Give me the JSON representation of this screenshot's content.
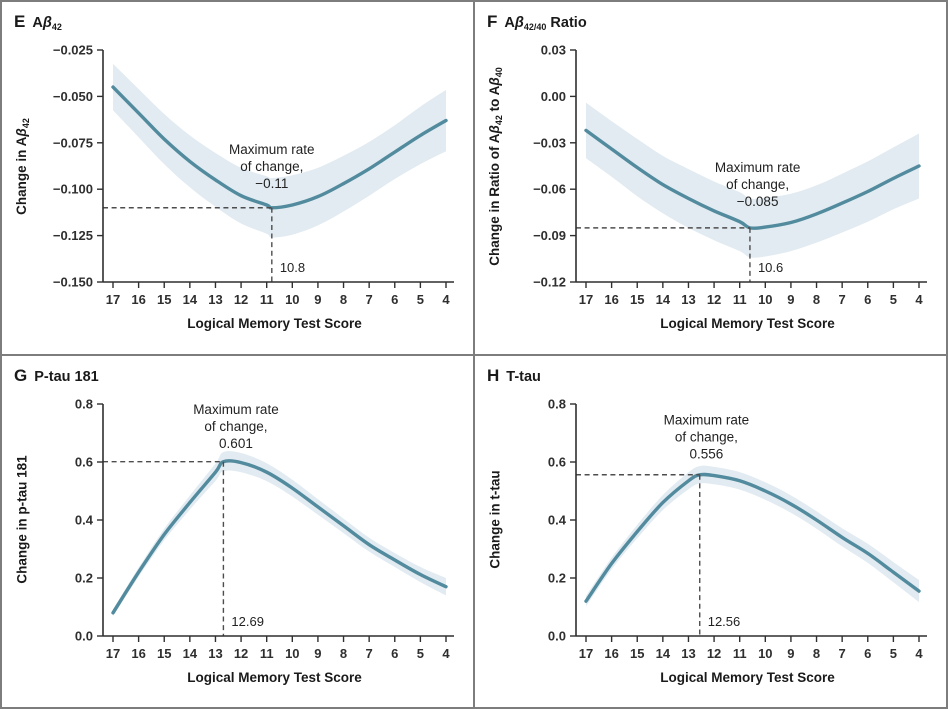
{
  "colors": {
    "line": "#528a9e",
    "band": "#e1ebf1",
    "axis": "#2f2f2f",
    "dashed": "#4d4d4d",
    "border": "#7d7d7d"
  },
  "chart_data": [
    {
      "type": "line",
      "panel": "E",
      "title_plain": "Abeta42",
      "title_parts": [
        {
          "t": "A"
        },
        {
          "t": "β",
          "italic": true
        },
        {
          "t": "42",
          "sub": true
        }
      ],
      "ylabel_parts": [
        {
          "t": "Change in A"
        },
        {
          "t": "β",
          "italic": true
        },
        {
          "t": "42",
          "sub": true
        }
      ],
      "xlabel": "Logical Memory Test Score",
      "x_range": [
        17,
        4
      ],
      "x_ticks": [
        17,
        16,
        15,
        14,
        13,
        12,
        11,
        10,
        9,
        8,
        7,
        6,
        5,
        4
      ],
      "ylim": [
        -0.15,
        -0.025
      ],
      "y_ticks": [
        {
          "v": -0.025,
          "label": "−0.025"
        },
        {
          "v": -0.05,
          "label": "−0.050"
        },
        {
          "v": -0.075,
          "label": "−0.075"
        },
        {
          "v": -0.1,
          "label": "−0.100"
        },
        {
          "v": -0.125,
          "label": "−0.125"
        },
        {
          "v": -0.15,
          "label": "−0.150"
        }
      ],
      "series": [
        {
          "name": "fitted change with 95% CI band",
          "x": [
            17,
            16,
            15,
            14,
            13,
            12,
            11,
            10.8,
            10,
            9,
            8,
            7,
            6,
            5,
            4
          ],
          "y": [
            -0.045,
            -0.059,
            -0.073,
            -0.085,
            -0.095,
            -0.1035,
            -0.1085,
            -0.11,
            -0.1085,
            -0.104,
            -0.097,
            -0.089,
            -0.08,
            -0.071,
            -0.063
          ],
          "band_half_width": [
            0.0125,
            0.013,
            0.0135,
            0.014,
            0.0145,
            0.015,
            0.0155,
            0.016,
            0.016,
            0.0155,
            0.015,
            0.0145,
            0.0145,
            0.0155,
            0.0165
          ]
        }
      ],
      "annotation": {
        "lines": [
          "Maximum rate",
          "of change,",
          "−0.11"
        ],
        "text_x": 10.8,
        "text_y": -0.081,
        "peak_x": 10.8,
        "peak_y": -0.11,
        "peak_label": "10.8"
      }
    },
    {
      "type": "line",
      "panel": "F",
      "title_plain": "Abeta42/40 Ratio",
      "title_parts": [
        {
          "t": "A"
        },
        {
          "t": "β",
          "italic": true
        },
        {
          "t": "42/40",
          "sub": true
        },
        {
          "t": " Ratio"
        }
      ],
      "ylabel_parts": [
        {
          "t": "Change in Ratio of A"
        },
        {
          "t": "β",
          "italic": true
        },
        {
          "t": "42",
          "sub": true
        },
        {
          "t": " to A"
        },
        {
          "t": "β",
          "italic": true
        },
        {
          "t": "40",
          "sub": true
        }
      ],
      "xlabel": "Logical Memory Test Score",
      "x_range": [
        17,
        4
      ],
      "x_ticks": [
        17,
        16,
        15,
        14,
        13,
        12,
        11,
        10,
        9,
        8,
        7,
        6,
        5,
        4
      ],
      "ylim": [
        -0.12,
        0.03
      ],
      "y_ticks": [
        {
          "v": 0.03,
          "label": "0.03"
        },
        {
          "v": 0.0,
          "label": "0.00"
        },
        {
          "v": -0.03,
          "label": "−0.03"
        },
        {
          "v": -0.06,
          "label": "−0.06"
        },
        {
          "v": -0.09,
          "label": "−0.09"
        },
        {
          "v": -0.12,
          "label": "−0.12"
        }
      ],
      "series": [
        {
          "name": "fitted change with 95% CI band",
          "x": [
            17,
            16,
            15,
            14,
            13,
            12,
            11,
            10.6,
            10,
            9,
            8,
            7,
            6,
            5,
            4
          ],
          "y": [
            -0.022,
            -0.034,
            -0.046,
            -0.057,
            -0.066,
            -0.074,
            -0.081,
            -0.085,
            -0.0845,
            -0.0815,
            -0.076,
            -0.069,
            -0.0615,
            -0.053,
            -0.045
          ],
          "band_half_width": [
            0.018,
            0.018,
            0.0185,
            0.0185,
            0.019,
            0.019,
            0.019,
            0.019,
            0.019,
            0.0185,
            0.0185,
            0.019,
            0.0195,
            0.02,
            0.021
          ]
        }
      ],
      "annotation": {
        "lines": [
          "Maximum rate",
          "of change,",
          "−0.085"
        ],
        "text_x": 10.3,
        "text_y": -0.049,
        "peak_x": 10.6,
        "peak_y": -0.085,
        "peak_label": "10.6"
      }
    },
    {
      "type": "line",
      "panel": "G",
      "title_plain": "P-tau 181",
      "title_parts": [
        {
          "t": "P-tau 181"
        }
      ],
      "ylabel_parts": [
        {
          "t": "Change in p-tau 181"
        }
      ],
      "xlabel": "Logical Memory Test Score",
      "x_range": [
        17,
        4
      ],
      "x_ticks": [
        17,
        16,
        15,
        14,
        13,
        12,
        11,
        10,
        9,
        8,
        7,
        6,
        5,
        4
      ],
      "ylim": [
        0,
        0.8
      ],
      "y_ticks": [
        {
          "v": 0.8,
          "label": "0.8"
        },
        {
          "v": 0.6,
          "label": "0.6"
        },
        {
          "v": 0.4,
          "label": "0.4"
        },
        {
          "v": 0.2,
          "label": "0.2"
        },
        {
          "v": 0.0,
          "label": "0.0"
        }
      ],
      "series": [
        {
          "name": "fitted change with 95% CI band",
          "x": [
            17,
            16,
            15,
            14,
            13,
            12.69,
            12,
            11,
            10,
            9,
            8,
            7,
            6,
            5,
            4
          ],
          "y": [
            0.08,
            0.22,
            0.35,
            0.46,
            0.565,
            0.601,
            0.598,
            0.565,
            0.51,
            0.445,
            0.38,
            0.315,
            0.262,
            0.212,
            0.17
          ],
          "band_half_width": [
            0.012,
            0.016,
            0.02,
            0.024,
            0.03,
            0.033,
            0.033,
            0.031,
            0.029,
            0.027,
            0.025,
            0.024,
            0.024,
            0.026,
            0.03
          ]
        }
      ],
      "annotation": {
        "lines": [
          "Maximum rate",
          "of change,",
          "0.601"
        ],
        "text_x": 12.2,
        "text_y": 0.766,
        "peak_x": 12.69,
        "peak_y": 0.601,
        "peak_label": "12.69"
      }
    },
    {
      "type": "line",
      "panel": "H",
      "title_plain": "T-tau",
      "title_parts": [
        {
          "t": "T-tau"
        }
      ],
      "ylabel_parts": [
        {
          "t": "Change in t-tau"
        }
      ],
      "xlabel": "Logical Memory Test Score",
      "x_range": [
        17,
        4
      ],
      "x_ticks": [
        17,
        16,
        15,
        14,
        13,
        12,
        11,
        10,
        9,
        8,
        7,
        6,
        5,
        4
      ],
      "ylim": [
        0,
        0.8
      ],
      "y_ticks": [
        {
          "v": 0.8,
          "label": "0.8"
        },
        {
          "v": 0.6,
          "label": "0.6"
        },
        {
          "v": 0.4,
          "label": "0.4"
        },
        {
          "v": 0.2,
          "label": "0.2"
        },
        {
          "v": 0.0,
          "label": "0.0"
        }
      ],
      "series": [
        {
          "name": "fitted change with 95% CI band",
          "x": [
            17,
            16,
            15,
            14,
            13,
            12.56,
            12,
            11,
            10,
            9,
            8,
            7,
            6,
            5,
            4
          ],
          "y": [
            0.12,
            0.25,
            0.36,
            0.46,
            0.535,
            0.556,
            0.553,
            0.535,
            0.5,
            0.455,
            0.4,
            0.34,
            0.285,
            0.22,
            0.155
          ],
          "band_half_width": [
            0.018,
            0.02,
            0.023,
            0.026,
            0.029,
            0.03,
            0.03,
            0.03,
            0.03,
            0.03,
            0.03,
            0.031,
            0.033,
            0.035,
            0.038
          ]
        }
      ],
      "annotation": {
        "lines": [
          "Maximum rate",
          "of change,",
          "0.556"
        ],
        "text_x": 12.3,
        "text_y": 0.73,
        "peak_x": 12.56,
        "peak_y": 0.556,
        "peak_label": "12.56"
      }
    }
  ]
}
